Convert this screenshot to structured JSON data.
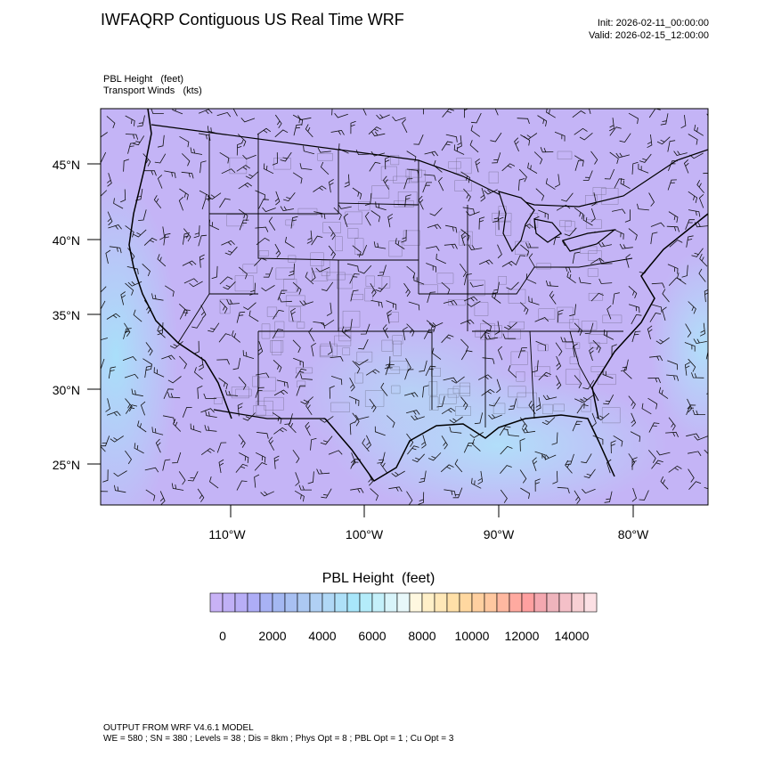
{
  "header": {
    "title": "IWFAQRP Contiguous US Real Time WRF",
    "init": "Init: 2026-02-11_00:00:00",
    "valid": "Valid: 2026-02-15_12:00:00"
  },
  "fields": {
    "primary": "PBL Height   (feet)",
    "secondary": "Transport Winds   (kts)"
  },
  "map": {
    "lat_ticks": [
      "45°N",
      "40°N",
      "35°N",
      "30°N",
      "25°N"
    ],
    "lon_ticks": [
      "110°W",
      "100°W",
      "90°W",
      "80°W"
    ]
  },
  "legend": {
    "title": "PBL Height  (feet)",
    "labels": [
      "0",
      "2000",
      "4000",
      "6000",
      "8000",
      "10000",
      "12000",
      "14000"
    ],
    "colors": [
      "#c8b2f6",
      "#c0b0f6",
      "#b8aef6",
      "#aeadf6",
      "#a8b2f4",
      "#a4b8f2",
      "#a8c0f2",
      "#acc8f2",
      "#b0d0f4",
      "#b0d8f6",
      "#aee0f8",
      "#a8e6fa",
      "#b4ecfa",
      "#c4f0fa",
      "#d8f4fa",
      "#e8f8fa",
      "#fff8e0",
      "#fff0c8",
      "#ffe8b8",
      "#ffe0a8",
      "#ffd8a0",
      "#ffd0a0",
      "#ffc8a0",
      "#ffb8a0",
      "#ffaaa0",
      "#ffa0a0",
      "#f4a8b0",
      "#eeb4bc",
      "#f4c0c8",
      "#f8d0d4",
      "#fce0e4"
    ]
  },
  "footer": {
    "line1": "OUTPUT FROM WRF V4.6.1 MODEL",
    "line2": "WE = 580 ; SN = 380 ; Levels = 38 ; Dis = 8km ; Phys Opt = 8 ; PBL Opt = 1 ; Cu Opt = 3"
  }
}
